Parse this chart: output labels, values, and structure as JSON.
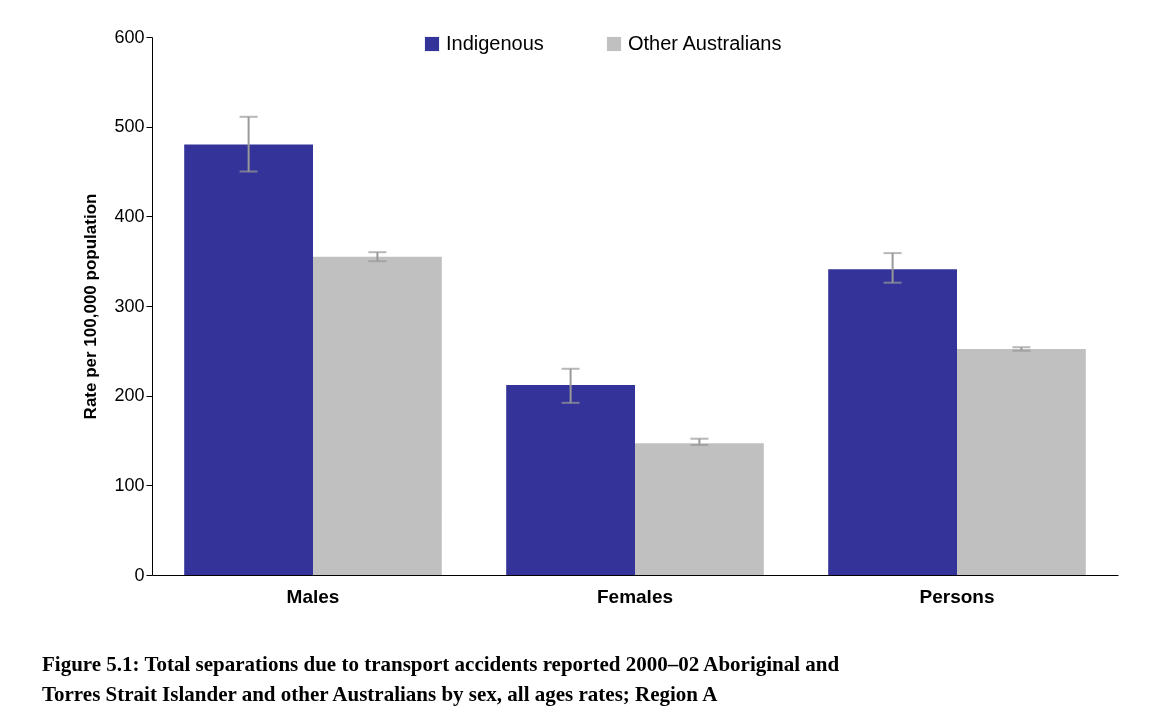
{
  "chart_data": {
    "type": "bar",
    "title": "Figure 5.1: Total separations due to transport accidents reported 2000–02 Aboriginal and Torres Strait Islander and other Australians by sex, all ages rates; Region A",
    "ylabel": "Rate per 100,000 population",
    "categories": [
      "Males",
      "Females",
      "Persons"
    ],
    "series": [
      {
        "name": "Indigenous",
        "color": "#333399",
        "values": [
          480,
          212,
          341
        ],
        "errors": [
          [
            450,
            511
          ],
          [
            192,
            230
          ],
          [
            326,
            359
          ]
        ]
      },
      {
        "name": "Other Australians",
        "color": "#c0c0c0",
        "values": [
          355,
          147,
          252
        ],
        "errors": [
          [
            350,
            360
          ],
          [
            145,
            152
          ],
          [
            250,
            254
          ]
        ]
      }
    ],
    "ylim": [
      0,
      600
    ],
    "yticks": [
      0,
      100,
      200,
      300,
      400,
      500,
      600
    ],
    "grid": false,
    "legend": "top"
  }
}
